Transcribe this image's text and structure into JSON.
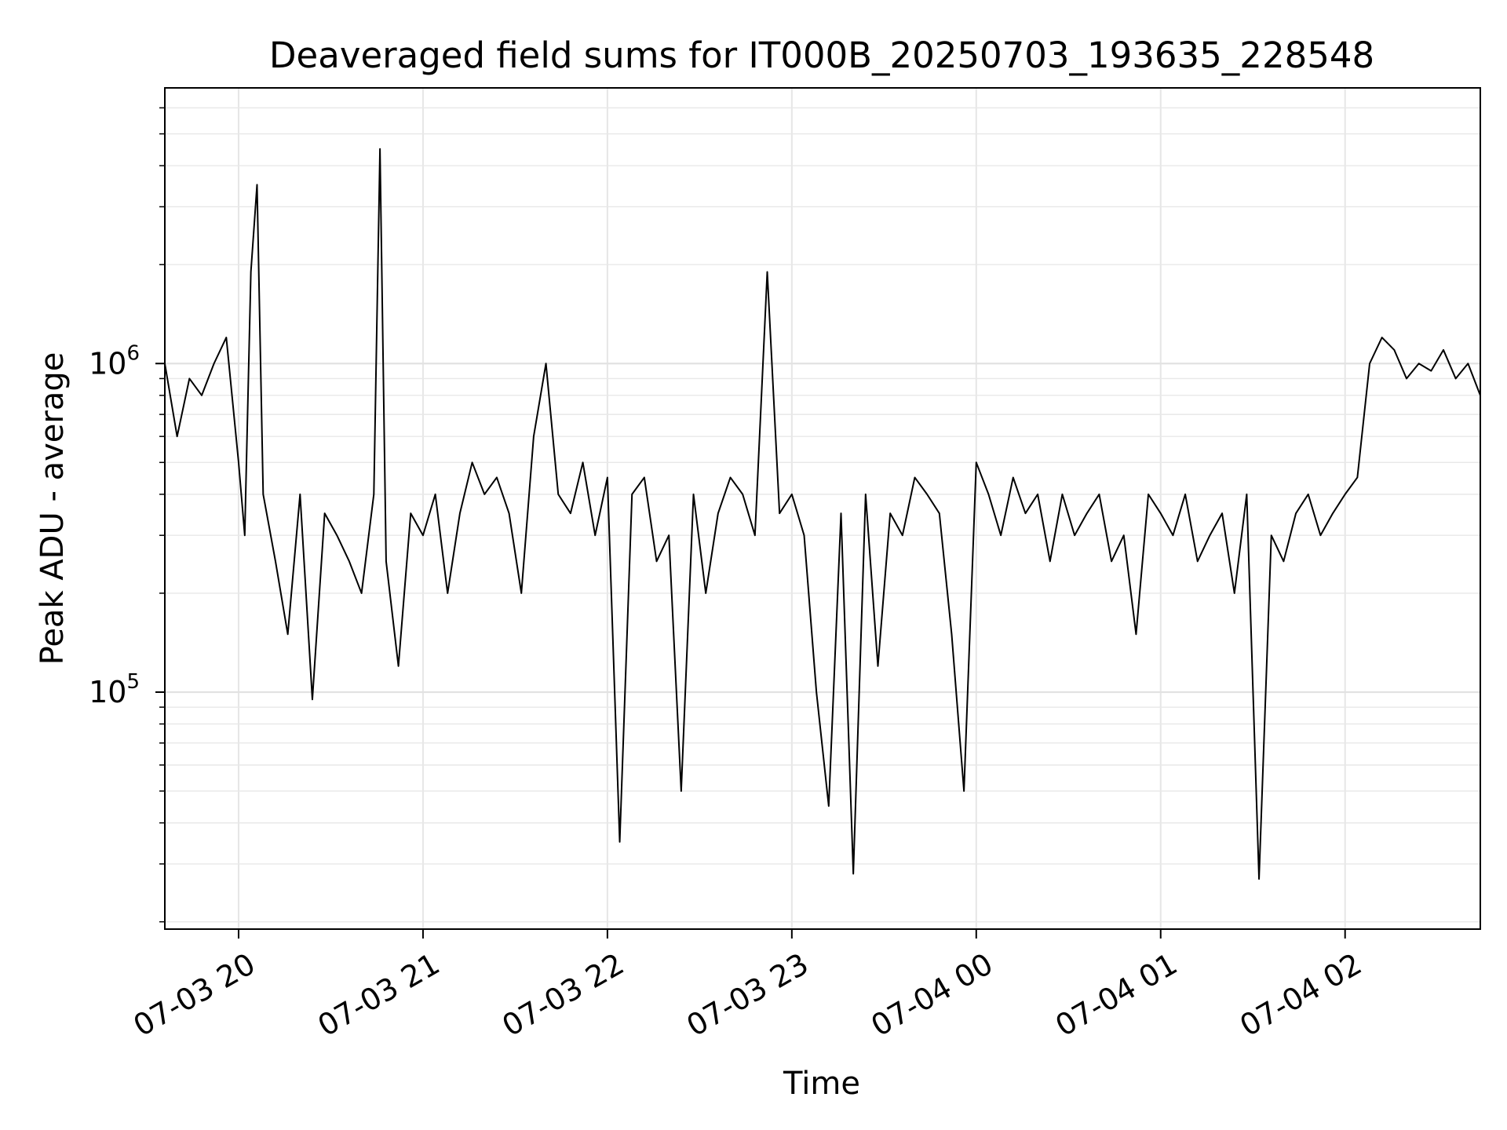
{
  "chart_data": {
    "type": "line",
    "title": "Deaveraged field sums for IT000B_20250703_193635_228548",
    "xlabel": "Time",
    "ylabel": "Peak ADU - average",
    "yscale": "log",
    "grid": true,
    "legend": "none",
    "line_color": "#000000",
    "xlim": [
      "2025-07-03 19:36",
      "2025-07-04 02:44"
    ],
    "ylim": [
      19000,
      6900000
    ],
    "x_ticks": [
      {
        "value": "2025-07-03 20:00",
        "label": "07-03 20"
      },
      {
        "value": "2025-07-03 21:00",
        "label": "07-03 21"
      },
      {
        "value": "2025-07-03 22:00",
        "label": "07-03 22"
      },
      {
        "value": "2025-07-03 23:00",
        "label": "07-03 23"
      },
      {
        "value": "2025-07-04 00:00",
        "label": "07-04 00"
      },
      {
        "value": "2025-07-04 01:00",
        "label": "07-04 01"
      },
      {
        "value": "2025-07-04 02:00",
        "label": "07-04 02"
      }
    ],
    "y_ticks": [
      {
        "value": 100000,
        "base": "10",
        "exp": "5"
      },
      {
        "value": 1000000,
        "base": "10",
        "exp": "6"
      }
    ],
    "series": [
      {
        "x": [
          "2025-07-03 19:36",
          "2025-07-03 19:40",
          "2025-07-03 19:44",
          "2025-07-03 19:48",
          "2025-07-03 19:52",
          "2025-07-03 19:56",
          "2025-07-03 20:00",
          "2025-07-03 20:02",
          "2025-07-03 20:04",
          "2025-07-03 20:06",
          "2025-07-03 20:08",
          "2025-07-03 20:12",
          "2025-07-03 20:16",
          "2025-07-03 20:20",
          "2025-07-03 20:24",
          "2025-07-03 20:28",
          "2025-07-03 20:32",
          "2025-07-03 20:36",
          "2025-07-03 20:40",
          "2025-07-03 20:44",
          "2025-07-03 20:46",
          "2025-07-03 20:48",
          "2025-07-03 20:52",
          "2025-07-03 20:56",
          "2025-07-03 21:00",
          "2025-07-03 21:04",
          "2025-07-03 21:08",
          "2025-07-03 21:12",
          "2025-07-03 21:16",
          "2025-07-03 21:20",
          "2025-07-03 21:24",
          "2025-07-03 21:28",
          "2025-07-03 21:32",
          "2025-07-03 21:36",
          "2025-07-03 21:40",
          "2025-07-03 21:44",
          "2025-07-03 21:48",
          "2025-07-03 21:52",
          "2025-07-03 21:56",
          "2025-07-03 22:00",
          "2025-07-03 22:04",
          "2025-07-03 22:08",
          "2025-07-03 22:12",
          "2025-07-03 22:16",
          "2025-07-03 22:20",
          "2025-07-03 22:24",
          "2025-07-03 22:28",
          "2025-07-03 22:32",
          "2025-07-03 22:36",
          "2025-07-03 22:40",
          "2025-07-03 22:44",
          "2025-07-03 22:48",
          "2025-07-03 22:52",
          "2025-07-03 22:56",
          "2025-07-03 23:00",
          "2025-07-03 23:04",
          "2025-07-03 23:08",
          "2025-07-03 23:12",
          "2025-07-03 23:16",
          "2025-07-03 23:20",
          "2025-07-03 23:24",
          "2025-07-03 23:28",
          "2025-07-03 23:32",
          "2025-07-03 23:36",
          "2025-07-03 23:40",
          "2025-07-03 23:44",
          "2025-07-03 23:48",
          "2025-07-03 23:52",
          "2025-07-03 23:56",
          "2025-07-04 00:00",
          "2025-07-04 00:04",
          "2025-07-04 00:08",
          "2025-07-04 00:12",
          "2025-07-04 00:16",
          "2025-07-04 00:20",
          "2025-07-04 00:24",
          "2025-07-04 00:28",
          "2025-07-04 00:32",
          "2025-07-04 00:36",
          "2025-07-04 00:40",
          "2025-07-04 00:44",
          "2025-07-04 00:48",
          "2025-07-04 00:52",
          "2025-07-04 00:56",
          "2025-07-04 01:00",
          "2025-07-04 01:04",
          "2025-07-04 01:08",
          "2025-07-04 01:12",
          "2025-07-04 01:16",
          "2025-07-04 01:20",
          "2025-07-04 01:24",
          "2025-07-04 01:28",
          "2025-07-04 01:32",
          "2025-07-04 01:36",
          "2025-07-04 01:40",
          "2025-07-04 01:44",
          "2025-07-04 01:48",
          "2025-07-04 01:52",
          "2025-07-04 01:56",
          "2025-07-04 02:00",
          "2025-07-04 02:04",
          "2025-07-04 02:08",
          "2025-07-04 02:12",
          "2025-07-04 02:16",
          "2025-07-04 02:20",
          "2025-07-04 02:24",
          "2025-07-04 02:28",
          "2025-07-04 02:32",
          "2025-07-04 02:36",
          "2025-07-04 02:40",
          "2025-07-04 02:44"
        ],
        "y": [
          1000000,
          600000,
          900000,
          800000,
          1000000,
          1200000,
          500000,
          300000,
          1900000,
          3500000,
          400000,
          250000,
          150000,
          400000,
          95000,
          350000,
          300000,
          250000,
          200000,
          400000,
          4500000,
          250000,
          120000,
          350000,
          300000,
          400000,
          200000,
          350000,
          500000,
          400000,
          450000,
          350000,
          200000,
          600000,
          1000000,
          400000,
          350000,
          500000,
          300000,
          450000,
          35000,
          400000,
          450000,
          250000,
          300000,
          50000,
          400000,
          200000,
          350000,
          450000,
          400000,
          300000,
          1900000,
          350000,
          400000,
          300000,
          100000,
          45000,
          350000,
          28000,
          400000,
          120000,
          350000,
          300000,
          450000,
          400000,
          350000,
          150000,
          50000,
          500000,
          400000,
          300000,
          450000,
          350000,
          400000,
          250000,
          400000,
          300000,
          350000,
          400000,
          250000,
          300000,
          150000,
          400000,
          350000,
          300000,
          400000,
          250000,
          300000,
          350000,
          200000,
          400000,
          27000,
          300000,
          250000,
          350000,
          400000,
          300000,
          350000,
          400000,
          450000,
          1000000,
          1200000,
          1100000,
          900000,
          1000000,
          950000,
          1100000,
          900000,
          1000000,
          800000
        ]
      }
    ]
  }
}
